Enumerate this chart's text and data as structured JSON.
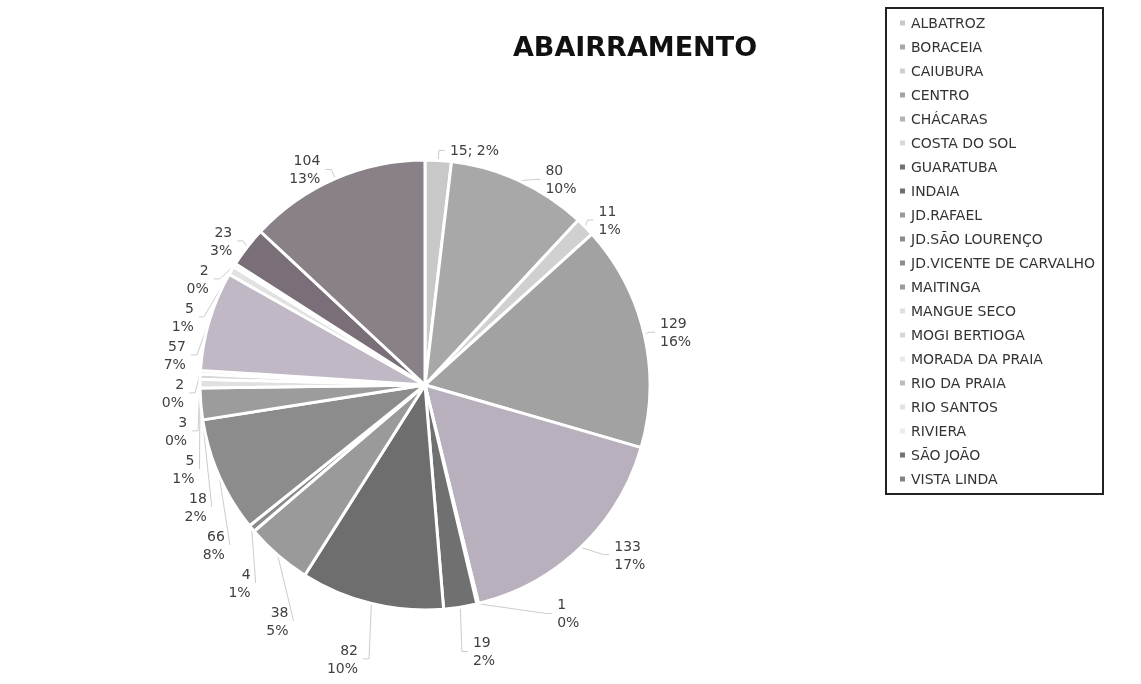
{
  "chart_data": {
    "type": "pie",
    "title": "ABAIRRAMENTO",
    "categories": [
      "ALBATROZ",
      "BORACEIA",
      "CAIUBURA",
      "CENTRO",
      "CHÁCARAS",
      "COSTA DO SOL",
      "GUARATUBA",
      "INDAIA",
      "JD.RAFAEL",
      "JD.SÃO LOURENÇO",
      "JD.VICENTE DE CARVALHO",
      "MAITINGA",
      "MANGUE SECO",
      "MOGI BERTIOGA",
      "MORADA DA PRAIA",
      "RIO DA PRAIA",
      "RIO SANTOS",
      "RIVIERA",
      "SÃO JOÃO",
      "VISTA LINDA"
    ],
    "values": [
      15,
      80,
      11,
      129,
      133,
      1,
      19,
      82,
      38,
      4,
      66,
      18,
      5,
      3,
      2,
      57,
      5,
      2,
      23,
      104
    ],
    "value_labels": [
      "15; 2%",
      "80\n10%",
      "11\n1%",
      "129\n16%",
      "133\n17%",
      "1\n0%",
      "19\n2%",
      "82\n10%",
      "38\n5%",
      "4\n1%",
      "66\n8%",
      "18\n2%",
      "5\n1%",
      "3\n0%",
      "2\n0%",
      "57\n7%",
      "5\n1%",
      "2\n0%",
      "23\n3%",
      "104\n13%"
    ],
    "colors": [
      "#c8c8c8",
      "#a8a8a8",
      "#d0d0d0",
      "#a2a2a2",
      "#b8b0bc",
      "#d8d8d8",
      "#707070",
      "#6e6e6e",
      "#9a9a9a",
      "#8a8a8a",
      "#8c8c8c",
      "#9c9c9c",
      "#e0e0e0",
      "#d6d6d6",
      "#e8e8e8",
      "#c0b8c4",
      "#e2e2e2",
      "#ececec",
      "#7a6e78",
      "#8a8088"
    ],
    "legend": "right"
  }
}
